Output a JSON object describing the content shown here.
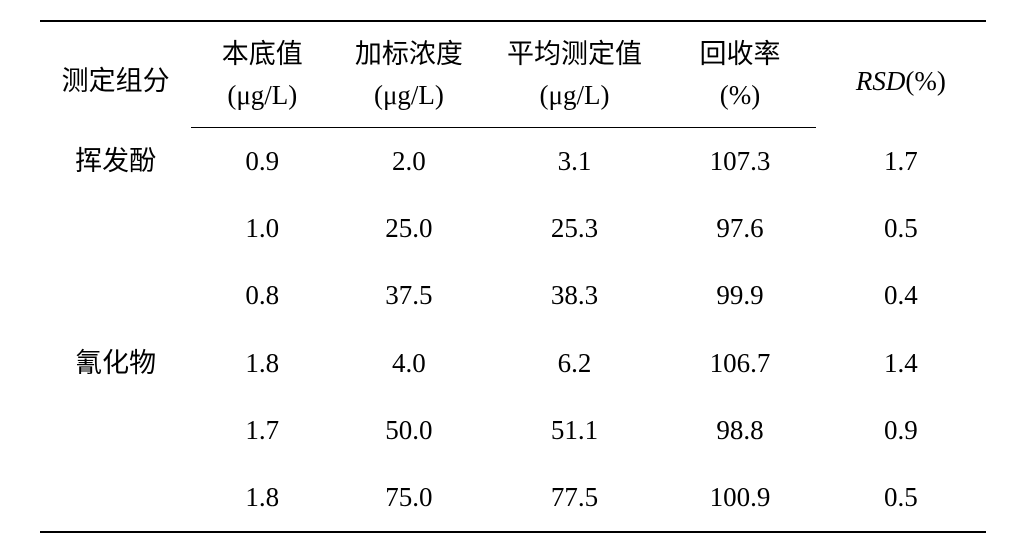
{
  "table": {
    "headers": {
      "component": {
        "line1": "测定组分",
        "line2": ""
      },
      "base": {
        "line1": "本底值",
        "line2": "(μg/L)"
      },
      "spike": {
        "line1": "加标浓度",
        "line2": "(μg/L)"
      },
      "avg": {
        "line1": "平均测定值",
        "line2": "(μg/L)"
      },
      "recovery": {
        "line1": "回收率",
        "line2": "(%)"
      },
      "rsd": {
        "label": "RSD",
        "unit": "(%)"
      }
    },
    "rows": [
      {
        "component": "挥发酚",
        "base": "0.9",
        "spike": "2.0",
        "avg": "3.1",
        "recovery": "107.3",
        "rsd": "1.7"
      },
      {
        "component": "",
        "base": "1.0",
        "spike": "25.0",
        "avg": "25.3",
        "recovery": "97.6",
        "rsd": "0.5"
      },
      {
        "component": "",
        "base": "0.8",
        "spike": "37.5",
        "avg": "38.3",
        "recovery": "99.9",
        "rsd": "0.4"
      },
      {
        "component": "氰化物",
        "base": "1.8",
        "spike": "4.0",
        "avg": "6.2",
        "recovery": "106.7",
        "rsd": "1.4"
      },
      {
        "component": "",
        "base": "1.7",
        "spike": "50.0",
        "avg": "51.1",
        "recovery": "98.8",
        "rsd": "0.9"
      },
      {
        "component": "",
        "base": "1.8",
        "spike": "75.0",
        "avg": "77.5",
        "recovery": "100.9",
        "rsd": "0.5"
      }
    ]
  },
  "styling": {
    "background_color": "#ffffff",
    "text_color": "#000000",
    "border_color": "#000000",
    "top_border_width": 2,
    "header_border_width": 1.5,
    "bottom_border_width": 2,
    "header_fontsize": 27,
    "body_fontsize": 27,
    "font_family": "SimSun",
    "column_widths_pct": [
      16,
      15,
      16,
      19,
      16,
      18
    ],
    "cell_padding_v": 12
  }
}
